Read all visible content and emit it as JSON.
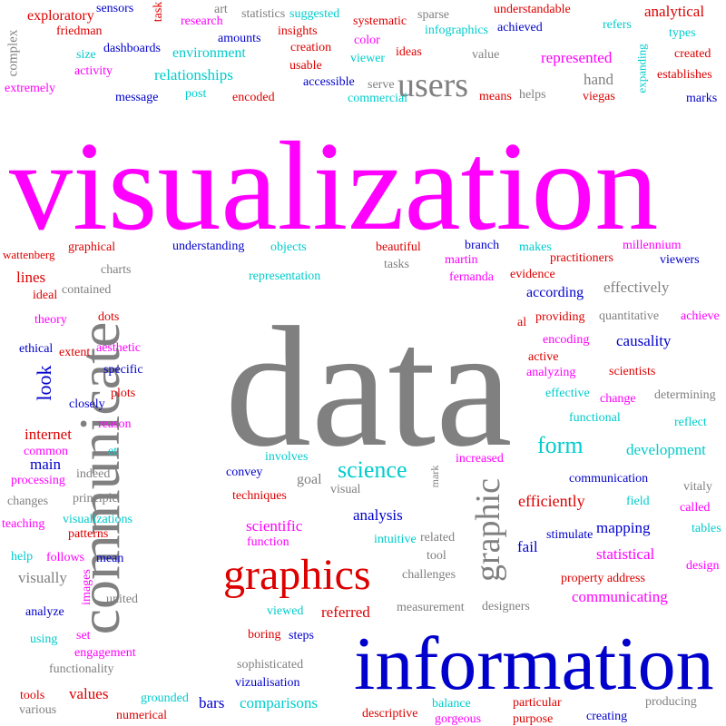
{
  "palette": {
    "magenta": "#ff00ff",
    "gray": "#808080",
    "red": "#dd0000",
    "blue": "#0000cc",
    "cyan": "#00cccc"
  },
  "words": [
    "visualization",
    "data",
    "information",
    "communicate",
    "graphics",
    "users",
    "graphic",
    "science",
    "complex",
    "exploratory",
    "sensors",
    "task",
    "art",
    "statistics",
    "suggested",
    "systematic",
    "sparse",
    "understandable",
    "analytical",
    "friedman",
    "research",
    "amounts",
    "insights",
    "color",
    "ideas",
    "infographics",
    "achieved",
    "refers",
    "types",
    "size",
    "dashboards",
    "environment",
    "creation",
    "viewer",
    "value",
    "represented",
    "expanding",
    "created",
    "activity",
    "relationships",
    "usable",
    "hand",
    "establishes",
    "extremely",
    "accessible",
    "serve",
    "message",
    "post",
    "encoded",
    "commercial",
    "means",
    "helps",
    "viegas",
    "marks",
    "wattenberg",
    "graphical",
    "understanding",
    "objects",
    "beautiful",
    "branch",
    "makes",
    "millennium",
    "charts",
    "martin",
    "practitioners",
    "viewers",
    "lines",
    "representation",
    "tasks",
    "fernanda",
    "evidence",
    "ideal",
    "contained",
    "according",
    "effectively",
    "theory",
    "dots",
    "al",
    "providing",
    "quantitative",
    "achieve",
    "ethical",
    "extent",
    "aesthetic",
    "look",
    "encoding",
    "causality",
    "specific",
    "active",
    "analyzing",
    "scientists",
    "plots",
    "closely",
    "effective",
    "change",
    "determining",
    "reason",
    "functional",
    "reflect",
    "internet",
    "form",
    "development",
    "common",
    "et",
    "main",
    "processing",
    "indeed",
    "involves",
    "increased",
    "convey",
    "goal",
    "mark",
    "communication",
    "vitaly",
    "changes",
    "principle",
    "techniques",
    "visual",
    "analysis",
    "efficiently",
    "field",
    "called",
    "teaching",
    "visualizations",
    "patterns",
    "scientific",
    "stimulate",
    "mapping",
    "tables",
    "intuitive",
    "related",
    "function",
    "fail",
    "help",
    "follows",
    "mean",
    "tool",
    "statistical",
    "design",
    "visually",
    "images",
    "challenges",
    "property address",
    "united",
    "communicating",
    "analyze",
    "viewed",
    "referred",
    "measurement",
    "designers",
    "using",
    "set",
    "boring",
    "steps",
    "engagement",
    "sophisticated",
    "functionality",
    "vizualisation",
    "tools",
    "values",
    "grounded",
    "bars",
    "comparisons",
    "various",
    "numerical",
    "descriptive",
    "balance",
    "particular",
    "producing",
    "gorgeous",
    "purpose",
    "creating"
  ]
}
